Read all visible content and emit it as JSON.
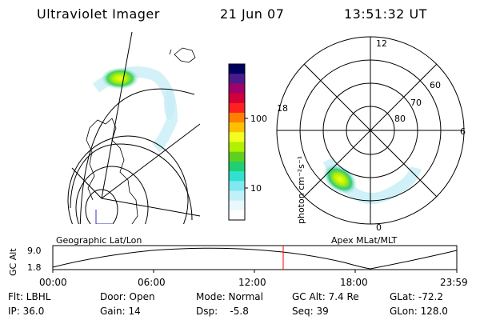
{
  "header": {
    "title": "Ultraviolet Imager",
    "date": "21 Jun 07",
    "time": "13:51:32 UT"
  },
  "colorbar": {
    "unit_label": "photon cm⁻²s⁻¹",
    "ticks": [
      "100",
      "10"
    ],
    "colors": [
      "#000060",
      "#4a1a8a",
      "#a0006a",
      "#d0003a",
      "#ff2020",
      "#ff8000",
      "#ffc000",
      "#f0ff20",
      "#b0f000",
      "#60d020",
      "#20d070",
      "#30e0d0",
      "#80e8f0",
      "#c0f0f8",
      "#e8f8fc",
      "#ffffff"
    ]
  },
  "left_map": {
    "caption": "Geographic Lat/Lon"
  },
  "right_map": {
    "caption": "Apex MLat/MLT",
    "clock_labels": {
      "top": "12",
      "left": "18",
      "right": "6",
      "bottom": "0"
    },
    "lat_labels": [
      "60",
      "70",
      "80"
    ]
  },
  "altitude_plot": {
    "ylabel": "GC Alt",
    "ymax_label": "9.0",
    "ymin_label": "1.8",
    "time_ticks": [
      "00:00",
      "06:00",
      "12:00",
      "18:00",
      "23:59"
    ],
    "current_time_marker_color": "#ff0000",
    "line_color": "#000000"
  },
  "footer": {
    "flt": "Flt: LBHL",
    "ip": "IP: 36.0",
    "door": "Door: Open",
    "gain": "Gain: 14",
    "mode": "Mode: Normal",
    "dsp": "Dsp:    -5.8",
    "gc_alt": "GC Alt: 7.4 Re",
    "seq": "Seq: 39",
    "glat": "GLat: -72.2",
    "glon": "GLon: 128.0"
  }
}
